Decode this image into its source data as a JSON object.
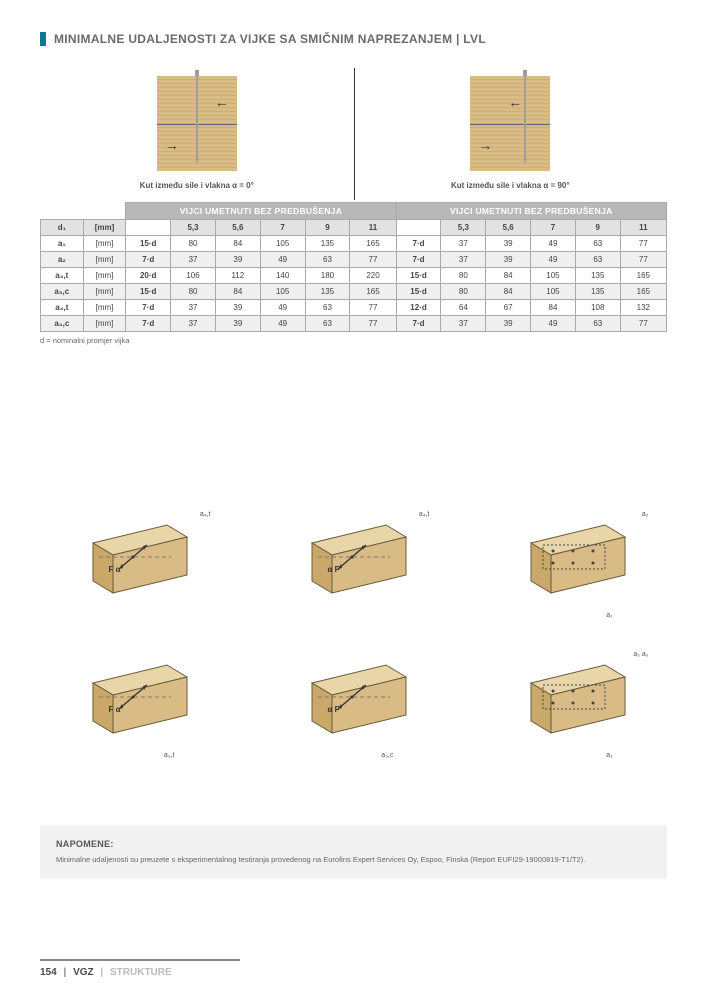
{
  "header": {
    "title": "MINIMALNE UDALJENOSTI ZA VIJKE SA SMIČNIM NAPREZANJEM | LVL"
  },
  "top_diagrams": {
    "left_caption": "Kut između sile i vlakna α = 0°",
    "right_caption": "Kut između sile i vlakna α = 90°",
    "wood_color": "#d8bb85",
    "grain_color": "#cfae70",
    "screw_color": "#9e9e9e"
  },
  "table": {
    "group_left": "VIJCI UMETNUTI BEZ PREDBUŠENJA",
    "group_right": "VIJCI UMETNUTI BEZ PREDBUŠENJA",
    "d1_label": "d₁",
    "d1_unit": "[mm]",
    "col_headers": [
      "5,3",
      "5,6",
      "7",
      "9",
      "11"
    ],
    "rows": [
      {
        "label": "a₁",
        "unit": "[mm]",
        "left_formula": "15·d",
        "left": [
          "80",
          "84",
          "105",
          "135",
          "165"
        ],
        "right_formula": "7·d",
        "right": [
          "37",
          "39",
          "49",
          "63",
          "77"
        ],
        "shade": false
      },
      {
        "label": "a₂",
        "unit": "[mm]",
        "left_formula": "7·d",
        "left": [
          "37",
          "39",
          "49",
          "63",
          "77"
        ],
        "right_formula": "7·d",
        "right": [
          "37",
          "39",
          "49",
          "63",
          "77"
        ],
        "shade": true
      },
      {
        "label": "a₃,t",
        "unit": "[mm]",
        "left_formula": "20·d",
        "left": [
          "106",
          "112",
          "140",
          "180",
          "220"
        ],
        "right_formula": "15·d",
        "right": [
          "80",
          "84",
          "105",
          "135",
          "165"
        ],
        "shade": false
      },
      {
        "label": "a₃,c",
        "unit": "[mm]",
        "left_formula": "15·d",
        "left": [
          "80",
          "84",
          "105",
          "135",
          "165"
        ],
        "right_formula": "15·d",
        "right": [
          "80",
          "84",
          "105",
          "135",
          "165"
        ],
        "shade": true
      },
      {
        "label": "a₄,t",
        "unit": "[mm]",
        "left_formula": "7·d",
        "left": [
          "37",
          "39",
          "49",
          "63",
          "77"
        ],
        "right_formula": "12·d",
        "right": [
          "64",
          "67",
          "84",
          "108",
          "132"
        ],
        "shade": false
      },
      {
        "label": "a₄,c",
        "unit": "[mm]",
        "left_formula": "7·d",
        "left": [
          "37",
          "39",
          "49",
          "63",
          "77"
        ],
        "right_formula": "7·d",
        "right": [
          "37",
          "39",
          "49",
          "63",
          "77"
        ],
        "shade": true
      }
    ],
    "footnote": "d = nominalni promjer vijka",
    "colors": {
      "header_bg": "#b8b8b8",
      "header_fg": "#ffffff",
      "sub_bg": "#e2e2e2",
      "shade_bg": "#efefef",
      "border": "#aaaaaa"
    }
  },
  "iso_diagrams": {
    "wood_top": "#e9d6a8",
    "wood_front": "#d8bb85",
    "wood_side": "#c9a86a",
    "stroke": "#6a5a38",
    "items": [
      {
        "label_tr": "a₄,t",
        "annot": "F α",
        "label_br": ""
      },
      {
        "label_tr": "a₄,t",
        "annot": "α F",
        "label_br": ""
      },
      {
        "label_tr": "a₂",
        "annot": "",
        "label_br": "a₁"
      },
      {
        "label_tr": "",
        "annot": "F α",
        "label_br": "a₃,t"
      },
      {
        "label_tr": "",
        "annot": "α F",
        "label_br": "a₃,c"
      },
      {
        "label_tr": "a₂ a₂",
        "annot": "",
        "label_br": "a₁"
      }
    ]
  },
  "notes": {
    "title": "NAPOMENE:",
    "body": "Minimalne udaljenosti su preuzete s eksperimentalnog testiranja provedenog na Eurofins Expert Services Oy, Espoo, Finska (Report EUFI29-19000819-T1/T2)."
  },
  "footer": {
    "page": "154",
    "brand": "VGZ",
    "section": "STRUKTURE"
  }
}
